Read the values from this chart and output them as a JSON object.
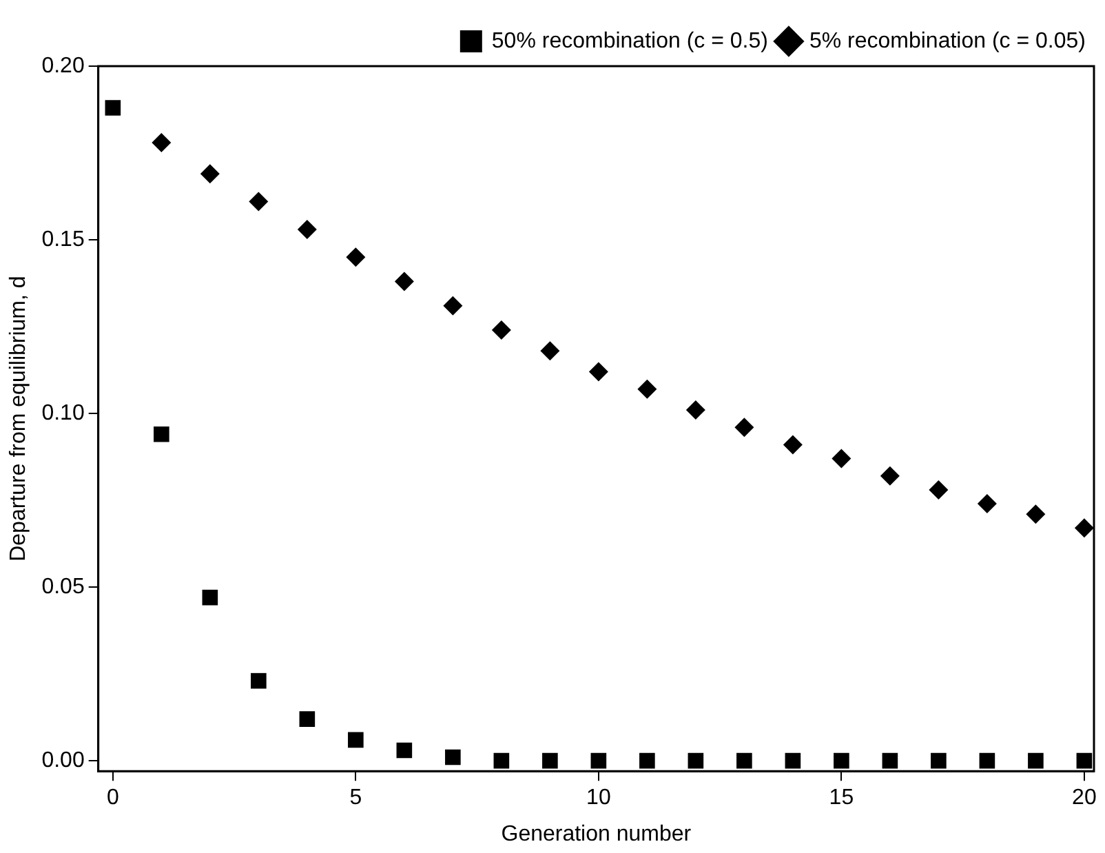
{
  "chart_data": {
    "type": "scatter",
    "xlabel": "Generation number",
    "ylabel": "Departure from equilibrium, d",
    "x": [
      0,
      1,
      2,
      3,
      4,
      5,
      6,
      7,
      8,
      9,
      10,
      11,
      12,
      13,
      14,
      15,
      16,
      17,
      18,
      19,
      20
    ],
    "series": [
      {
        "name": "50% recombination (c = 0.5)",
        "color": "#000000",
        "marker": "square",
        "values": [
          0.188,
          0.094,
          0.047,
          0.023,
          0.012,
          0.006,
          0.003,
          0.001,
          0.0,
          0.0,
          0.0,
          0.0,
          0.0,
          0.0,
          0.0,
          0.0,
          0.0,
          0.0,
          0.0,
          0.0,
          0.0
        ]
      },
      {
        "name": "5% recombination (c = 0.05)",
        "color": "#000000",
        "marker": "diamond",
        "values": [
          null,
          0.178,
          0.169,
          0.161,
          0.153,
          0.145,
          0.138,
          0.131,
          0.124,
          0.118,
          0.112,
          0.107,
          0.101,
          0.096,
          0.091,
          0.087,
          0.082,
          0.078,
          0.074,
          0.071,
          0.067
        ]
      }
    ],
    "xlim": [
      -0.3,
      20.2
    ],
    "xticks": [
      0,
      5,
      10,
      15,
      20
    ],
    "ylim": [
      -0.003,
      0.2
    ],
    "yticks": [
      {
        "value": 0,
        "label": "0.00"
      },
      {
        "value": 0.05,
        "label": "0.05"
      },
      {
        "value": 0.1,
        "label": "0.10"
      },
      {
        "value": 0.15,
        "label": "0.15"
      },
      {
        "value": 0.2,
        "label": "0.20"
      }
    ],
    "legend": "top right",
    "grid": false
  }
}
